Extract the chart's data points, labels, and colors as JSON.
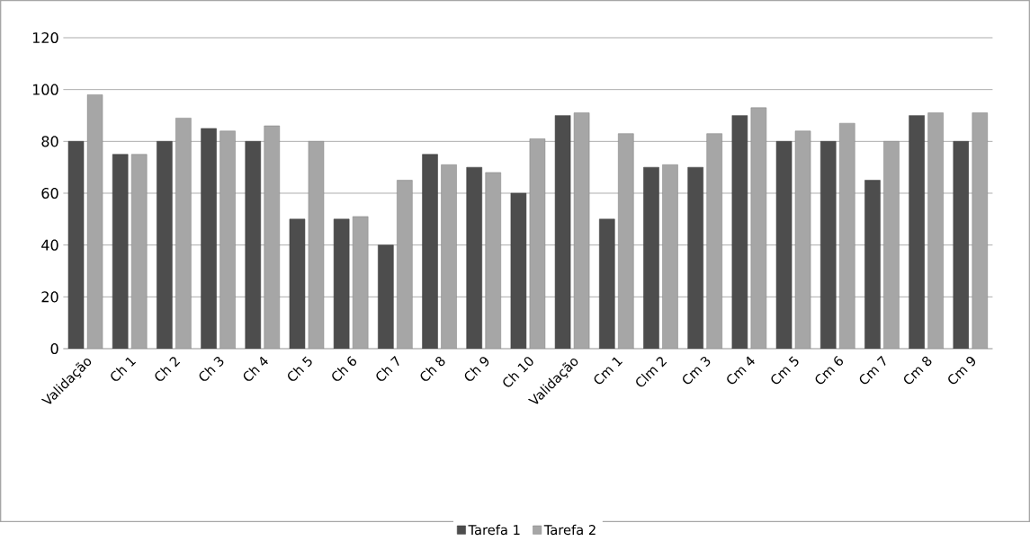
{
  "chart_data": {
    "type": "bar",
    "categories": [
      "Validação",
      "Ch 1",
      "Ch 2",
      "Ch 3",
      "Ch 4",
      "Ch 5",
      "Ch 6",
      "Ch 7",
      "Ch 8",
      "Ch 9",
      "Ch 10",
      "Validação",
      "Cm 1",
      "Clm 2",
      "Cm 3",
      "Cm 4",
      "Cm 5",
      "Cm 6",
      "Cm 7",
      "Cm 8",
      "Cm 9"
    ],
    "series": [
      {
        "name": "Tarefa 1",
        "color": "#4d4d4d",
        "values": [
          80,
          75,
          80,
          85,
          80,
          50,
          50,
          40,
          75,
          70,
          60,
          90,
          50,
          70,
          70,
          90,
          80,
          80,
          65,
          90,
          80
        ]
      },
      {
        "name": "Tarefa 2",
        "color": "#a6a6a6",
        "values": [
          98,
          75,
          89,
          84,
          86,
          80,
          51,
          65,
          71,
          68,
          81,
          91,
          83,
          71,
          83,
          93,
          84,
          87,
          80,
          91,
          91
        ]
      }
    ],
    "ylim": [
      0,
      120
    ],
    "yticks": [
      0,
      20,
      40,
      60,
      80,
      100,
      120
    ],
    "grid": "y",
    "legend": "bottom"
  }
}
